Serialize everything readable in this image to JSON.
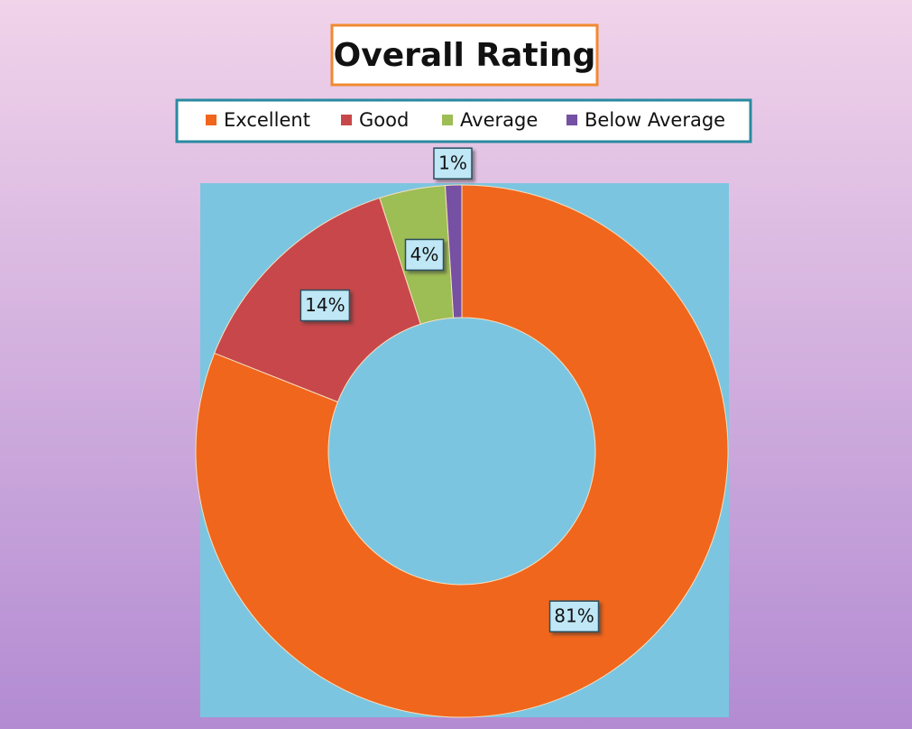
{
  "chart_data": {
    "type": "donut",
    "title": "Overall Rating",
    "categories": [
      "Excellent",
      "Good",
      "Average",
      "Below Average"
    ],
    "values": [
      81,
      14,
      4,
      1
    ],
    "value_labels": [
      "81%",
      "14%",
      "4%",
      "1%"
    ],
    "colors": [
      "#f0661c",
      "#c8474a",
      "#9dbd55",
      "#7650a3"
    ],
    "legend": "top"
  }
}
